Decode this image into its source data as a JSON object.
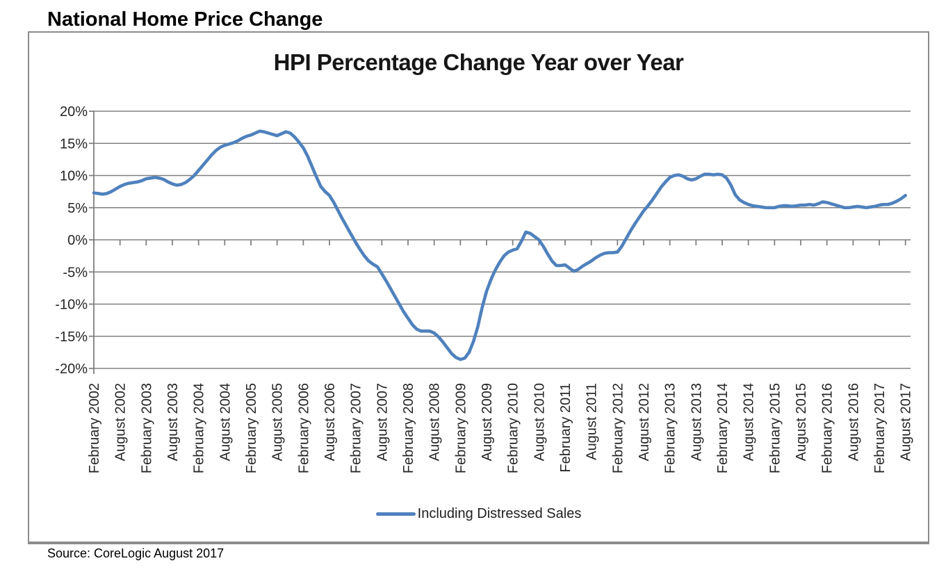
{
  "header": {
    "title": "National Home Price Change"
  },
  "footer": {
    "source": "Source: CoreLogic August 2017"
  },
  "legend": {
    "label": "Including Distressed Sales"
  },
  "colors": {
    "line": "#4F81BD",
    "gridline": "#808080",
    "axis": "#808080",
    "axis_text": "#262626",
    "title_text": "#161616"
  },
  "chart_data": {
    "type": "line",
    "title": "HPI Percentage Change Year over Year",
    "xlabel": "",
    "ylabel": "",
    "ylim": [
      -20,
      20
    ],
    "y_step": 5,
    "grid": true,
    "legend_position": "bottom",
    "y_tick_labels": [
      "20%",
      "15%",
      "10%",
      "5%",
      "0%",
      "-5%",
      "-10%",
      "-15%",
      "-20%"
    ],
    "x_tick_labels": [
      "February 2002",
      "August 2002",
      "February 2003",
      "August 2003",
      "February 2004",
      "August 2004",
      "February 2005",
      "August 2005",
      "February 2006",
      "August 2006",
      "February 2007",
      "August 2007",
      "February 2008",
      "August 2008",
      "February 2009",
      "August 2009",
      "February 2010",
      "August 2010",
      "February 2011",
      "August 2011",
      "February 2012",
      "August 2012",
      "February 2013",
      "August 2013",
      "February 2014",
      "August 2014",
      "February 2015",
      "August 2015",
      "February 2016",
      "August 2016",
      "February 2017",
      "August 2017"
    ],
    "months_per_point": 1,
    "points_per_x_tick": 6,
    "series": [
      {
        "name": "Including Distressed Sales",
        "color": "#4F81BD",
        "x_start": "February 2002",
        "x_end": "August 2017",
        "unit": "percent YoY",
        "values": [
          7.3,
          7.2,
          7.1,
          7.2,
          7.5,
          7.9,
          8.3,
          8.6,
          8.8,
          8.9,
          9.0,
          9.2,
          9.5,
          9.6,
          9.7,
          9.6,
          9.4,
          9.0,
          8.7,
          8.5,
          8.6,
          8.9,
          9.4,
          10.0,
          10.8,
          11.6,
          12.4,
          13.2,
          13.9,
          14.4,
          14.7,
          14.9,
          15.1,
          15.4,
          15.8,
          16.1,
          16.3,
          16.6,
          16.9,
          16.8,
          16.6,
          16.4,
          16.2,
          16.5,
          16.8,
          16.6,
          16.0,
          15.2,
          14.3,
          13.0,
          11.4,
          9.8,
          8.3,
          7.5,
          6.9,
          5.8,
          4.5,
          3.2,
          2.0,
          0.8,
          -0.4,
          -1.5,
          -2.5,
          -3.3,
          -3.8,
          -4.2,
          -5.3,
          -6.4,
          -7.6,
          -8.8,
          -10.0,
          -11.2,
          -12.2,
          -13.2,
          -13.9,
          -14.2,
          -14.2,
          -14.2,
          -14.5,
          -15.1,
          -15.9,
          -16.8,
          -17.7,
          -18.3,
          -18.6,
          -18.4,
          -17.5,
          -15.8,
          -13.5,
          -10.5,
          -8.0,
          -6.2,
          -4.7,
          -3.5,
          -2.5,
          -1.9,
          -1.6,
          -1.4,
          -0.2,
          1.2,
          1.0,
          0.5,
          0.0,
          -1.0,
          -2.2,
          -3.3,
          -4.0,
          -4.0,
          -3.9,
          -4.4,
          -4.9,
          -4.6,
          -4.1,
          -3.7,
          -3.3,
          -2.8,
          -2.4,
          -2.1,
          -2.0,
          -2.0,
          -1.9,
          -1.0,
          0.2,
          1.4,
          2.5,
          3.5,
          4.5,
          5.3,
          6.2,
          7.2,
          8.2,
          9.0,
          9.7,
          10.0,
          10.1,
          9.9,
          9.5,
          9.3,
          9.5,
          9.9,
          10.2,
          10.2,
          10.1,
          10.2,
          10.1,
          9.6,
          8.5,
          7.0,
          6.2,
          5.8,
          5.5,
          5.3,
          5.2,
          5.1,
          5.0,
          5.0,
          5.0,
          5.2,
          5.3,
          5.3,
          5.2,
          5.3,
          5.4,
          5.4,
          5.5,
          5.4,
          5.6,
          5.9,
          5.8,
          5.6,
          5.4,
          5.2,
          5.0,
          5.0,
          5.1,
          5.2,
          5.1,
          5.0,
          5.1,
          5.2,
          5.4,
          5.5,
          5.5,
          5.7,
          6.0,
          6.4,
          6.9
        ]
      }
    ]
  }
}
